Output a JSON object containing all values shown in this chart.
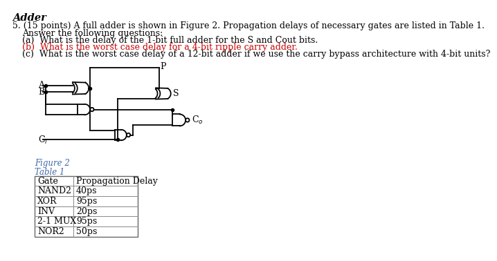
{
  "title": "Adder",
  "q_num": "5.",
  "q_text": "(15 points) A full adder is shown in Figure 2. Propagation delays of necessary gates are listed in Table 1.",
  "answer_line": "Answer the following questions:",
  "parts": [
    "(a)  What is the delay of the 1-bit full adder for the S and Cout bits.",
    "(b)  What is the worst case delay for a 4-bit ripple carry adder.",
    "(c)  What is the worst case delay of a 12-bit adder if we use the carry bypass architecture with 4-bit units?"
  ],
  "parts_colors": [
    "#000000",
    "#cc0000",
    "#000000"
  ],
  "figure_label": "Figure 2",
  "table_label": "Table 1",
  "table_headers": [
    "Gate",
    "Propagation Delay"
  ],
  "table_rows": [
    [
      "NAND2",
      "40ps"
    ],
    [
      "XOR",
      "95ps"
    ],
    [
      "INV",
      "20ps"
    ],
    [
      "2-1 MUX",
      "95ps"
    ],
    [
      "NOR2",
      "50ps"
    ]
  ],
  "bg_color": "#ffffff",
  "text_color": "#000000",
  "blue_color": "#4169aa"
}
